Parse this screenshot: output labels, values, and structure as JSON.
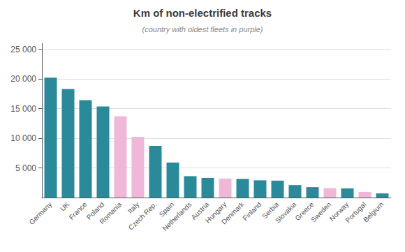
{
  "chart_data": {
    "type": "bar",
    "title": "Km of non-electrified tracks",
    "subtitle": "(country with oldest fleets in purple)",
    "categories": [
      "Germany",
      "UK",
      "France",
      "Poland",
      "Romania",
      "Italy",
      "Czech Rep.",
      "Spain",
      "Netherlands",
      "Austria",
      "Hungary",
      "Denmark",
      "Finland",
      "Serbia",
      "Slovakia",
      "Greece",
      "Sweden",
      "Norway",
      "Portugal",
      "Belgium"
    ],
    "values": [
      20200,
      18300,
      16400,
      15350,
      13700,
      10250,
      8700,
      5900,
      3600,
      3300,
      3200,
      3150,
      2900,
      2850,
      2100,
      1750,
      1600,
      1550,
      950,
      700
    ],
    "colors": [
      "#2a8a9a",
      "#2a8a9a",
      "#2a8a9a",
      "#2a8a9a",
      "#f0b8d8",
      "#f0b8d8",
      "#2a8a9a",
      "#2a8a9a",
      "#2a8a9a",
      "#2a8a9a",
      "#f0b8d8",
      "#2a8a9a",
      "#2a8a9a",
      "#2a8a9a",
      "#2a8a9a",
      "#2a8a9a",
      "#f0b8d8",
      "#2a8a9a",
      "#f0b8d8",
      "#2a8a9a"
    ],
    "ylim": [
      0,
      26000
    ],
    "yticks": [
      {
        "value": 5000,
        "label": "5 000"
      },
      {
        "value": 10000,
        "label": "10 000"
      },
      {
        "value": 15000,
        "label": "15 000"
      },
      {
        "value": 20000,
        "label": "20 000"
      },
      {
        "value": 25000,
        "label": "25 000"
      }
    ],
    "grid": true
  }
}
